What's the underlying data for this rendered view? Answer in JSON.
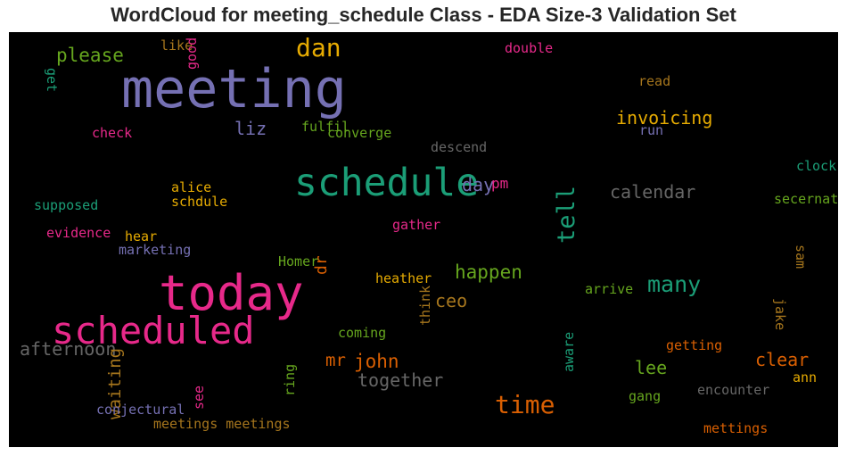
{
  "chart_data": {
    "type": "wordcloud",
    "title": "WordCloud for meeting_schedule Class - EDA Size-3 Validation Set",
    "background": "#000000",
    "palette": [
      "#1b9e77",
      "#d95f02",
      "#7570b3",
      "#e7298a",
      "#66a61e",
      "#e6ab02",
      "#a6761d",
      "#666666"
    ],
    "words": [
      {
        "text": "meeting",
        "weight": 1.0,
        "color": "#7570b3",
        "rotation": 0
      },
      {
        "text": "today",
        "weight": 0.9,
        "color": "#e7298a",
        "rotation": 0
      },
      {
        "text": "scheduled",
        "weight": 0.7,
        "color": "#e7298a",
        "rotation": 0
      },
      {
        "text": "schedule",
        "weight": 0.72,
        "color": "#1b9e77",
        "rotation": 0
      },
      {
        "text": "dan",
        "weight": 0.45,
        "color": "#e6ab02",
        "rotation": 0
      },
      {
        "text": "time",
        "weight": 0.45,
        "color": "#d95f02",
        "rotation": 0
      },
      {
        "text": "tell",
        "weight": 0.42,
        "color": "#1b9e77",
        "rotation": -90
      },
      {
        "text": "many",
        "weight": 0.38,
        "color": "#1b9e77",
        "rotation": 0
      },
      {
        "text": "please",
        "weight": 0.3,
        "color": "#66a61e",
        "rotation": 0
      },
      {
        "text": "invoicing",
        "weight": 0.28,
        "color": "#e6ab02",
        "rotation": 0
      },
      {
        "text": "liz",
        "weight": 0.28,
        "color": "#7570b3",
        "rotation": 0
      },
      {
        "text": "day",
        "weight": 0.28,
        "color": "#7570b3",
        "rotation": 0
      },
      {
        "text": "pm",
        "weight": 0.18,
        "color": "#e7298a",
        "rotation": 0
      },
      {
        "text": "calendar",
        "weight": 0.28,
        "color": "#666666",
        "rotation": 0
      },
      {
        "text": "happen",
        "weight": 0.3,
        "color": "#66a61e",
        "rotation": 0
      },
      {
        "text": "ceo",
        "weight": 0.28,
        "color": "#a6761d",
        "rotation": 0
      },
      {
        "text": "john",
        "weight": 0.3,
        "color": "#d95f02",
        "rotation": 0
      },
      {
        "text": "mr",
        "weight": 0.26,
        "color": "#d95f02",
        "rotation": 0
      },
      {
        "text": "together",
        "weight": 0.28,
        "color": "#666666",
        "rotation": 0
      },
      {
        "text": "afternoon",
        "weight": 0.28,
        "color": "#666666",
        "rotation": 0
      },
      {
        "text": "waiting",
        "weight": 0.25,
        "color": "#a6761d",
        "rotation": -90
      },
      {
        "text": "lee",
        "weight": 0.28,
        "color": "#66a61e",
        "rotation": 0
      },
      {
        "text": "clear",
        "weight": 0.28,
        "color": "#d95f02",
        "rotation": 0
      },
      {
        "text": "dr",
        "weight": 0.22,
        "color": "#d95f02",
        "rotation": -90
      },
      {
        "text": "like",
        "weight": 0.15,
        "color": "#a6761d",
        "rotation": 0
      },
      {
        "text": "good",
        "weight": 0.15,
        "color": "#e7298a",
        "rotation": -90
      },
      {
        "text": "double",
        "weight": 0.15,
        "color": "#e7298a",
        "rotation": 0
      },
      {
        "text": "get",
        "weight": 0.15,
        "color": "#1b9e77",
        "rotation": 90
      },
      {
        "text": "read",
        "weight": 0.15,
        "color": "#a6761d",
        "rotation": 0
      },
      {
        "text": "check",
        "weight": 0.15,
        "color": "#e7298a",
        "rotation": 0
      },
      {
        "text": "fulfil",
        "weight": 0.15,
        "color": "#66a61e",
        "rotation": 0
      },
      {
        "text": "converge",
        "weight": 0.15,
        "color": "#66a61e",
        "rotation": 0
      },
      {
        "text": "run",
        "weight": 0.15,
        "color": "#7570b3",
        "rotation": 0
      },
      {
        "text": "descend",
        "weight": 0.15,
        "color": "#666666",
        "rotation": 0
      },
      {
        "text": "clock",
        "weight": 0.15,
        "color": "#1b9e77",
        "rotation": 0
      },
      {
        "text": "alice",
        "weight": 0.15,
        "color": "#e6ab02",
        "rotation": 0
      },
      {
        "text": "schdule",
        "weight": 0.15,
        "color": "#e6ab02",
        "rotation": 0
      },
      {
        "text": "supposed",
        "weight": 0.15,
        "color": "#1b9e77",
        "rotation": 0
      },
      {
        "text": "secernate",
        "weight": 0.15,
        "color": "#66a61e",
        "rotation": 0
      },
      {
        "text": "evidence",
        "weight": 0.15,
        "color": "#e7298a",
        "rotation": 0
      },
      {
        "text": "gather",
        "weight": 0.15,
        "color": "#e7298a",
        "rotation": 0
      },
      {
        "text": "hear",
        "weight": 0.15,
        "color": "#e6ab02",
        "rotation": 0
      },
      {
        "text": "marketing",
        "weight": 0.15,
        "color": "#7570b3",
        "rotation": 0
      },
      {
        "text": "Homer",
        "weight": 0.15,
        "color": "#66a61e",
        "rotation": 0
      },
      {
        "text": "sam",
        "weight": 0.15,
        "color": "#a6761d",
        "rotation": 90
      },
      {
        "text": "heather",
        "weight": 0.15,
        "color": "#e6ab02",
        "rotation": 0
      },
      {
        "text": "think",
        "weight": 0.15,
        "color": "#a6761d",
        "rotation": -90
      },
      {
        "text": "arrive",
        "weight": 0.15,
        "color": "#66a61e",
        "rotation": 0
      },
      {
        "text": "jake",
        "weight": 0.15,
        "color": "#a6761d",
        "rotation": 90
      },
      {
        "text": "coming",
        "weight": 0.15,
        "color": "#66a61e",
        "rotation": 0
      },
      {
        "text": "aware",
        "weight": 0.15,
        "color": "#1b9e77",
        "rotation": -90
      },
      {
        "text": "getting",
        "weight": 0.15,
        "color": "#d95f02",
        "rotation": 0
      },
      {
        "text": "ann",
        "weight": 0.15,
        "color": "#e6ab02",
        "rotation": 0
      },
      {
        "text": "ring",
        "weight": 0.15,
        "color": "#66a61e",
        "rotation": -90
      },
      {
        "text": "see",
        "weight": 0.15,
        "color": "#e7298a",
        "rotation": -90
      },
      {
        "text": "encounter",
        "weight": 0.15,
        "color": "#666666",
        "rotation": 0
      },
      {
        "text": "gang",
        "weight": 0.15,
        "color": "#66a61e",
        "rotation": 0
      },
      {
        "text": "conjectural",
        "weight": 0.15,
        "color": "#7570b3",
        "rotation": 0
      },
      {
        "text": "meetings meetings",
        "weight": 0.15,
        "color": "#a6761d",
        "rotation": 0
      },
      {
        "text": "mettings",
        "weight": 0.15,
        "color": "#d95f02",
        "rotation": 0
      }
    ]
  }
}
